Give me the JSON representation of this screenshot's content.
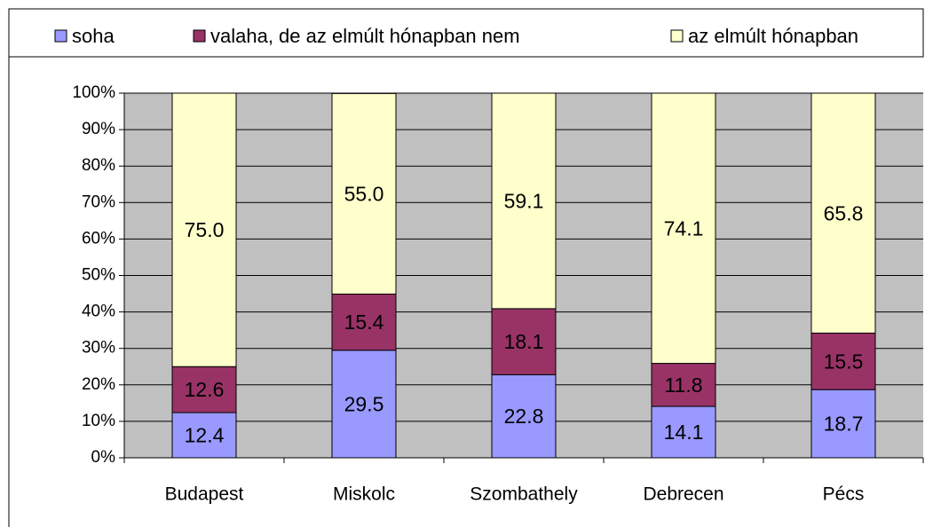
{
  "chart_data": {
    "type": "stacked_bar",
    "categories": [
      "Budapest",
      "Miskolc",
      "Szombathely",
      "Debrecen",
      "Pécs"
    ],
    "series": [
      {
        "name": "soha",
        "color": "#9999ff",
        "values": [
          12.4,
          29.5,
          22.8,
          14.1,
          18.7
        ],
        "value_labels": [
          "12.4",
          "29.5",
          "22.8",
          "14.1",
          "18.7"
        ]
      },
      {
        "name": "valaha, de az elmúlt hónapban nem",
        "color": "#993366",
        "values": [
          12.6,
          15.4,
          18.1,
          11.8,
          15.5
        ],
        "value_labels": [
          "12.6",
          "15.4",
          "18.1",
          "11.8",
          "15.5"
        ]
      },
      {
        "name": "az elmúlt hónapban",
        "color": "#ffffcc",
        "values": [
          75.0,
          55.0,
          59.1,
          74.1,
          65.8
        ],
        "value_labels": [
          "75.0",
          "55.0",
          "59.1",
          "74.1",
          "65.8"
        ]
      }
    ],
    "ylim": [
      0,
      100
    ],
    "yticks": [
      {
        "value": 0,
        "label": "0%"
      },
      {
        "value": 10,
        "label": "10%"
      },
      {
        "value": 20,
        "label": "20%"
      },
      {
        "value": 30,
        "label": "30%"
      },
      {
        "value": 40,
        "label": "40%"
      },
      {
        "value": 50,
        "label": "50%"
      },
      {
        "value": 60,
        "label": "60%"
      },
      {
        "value": 70,
        "label": "70%"
      },
      {
        "value": 80,
        "label": "80%"
      },
      {
        "value": 90,
        "label": "90%"
      },
      {
        "value": 100,
        "label": "100%"
      }
    ],
    "grid": true,
    "legend": "top"
  }
}
